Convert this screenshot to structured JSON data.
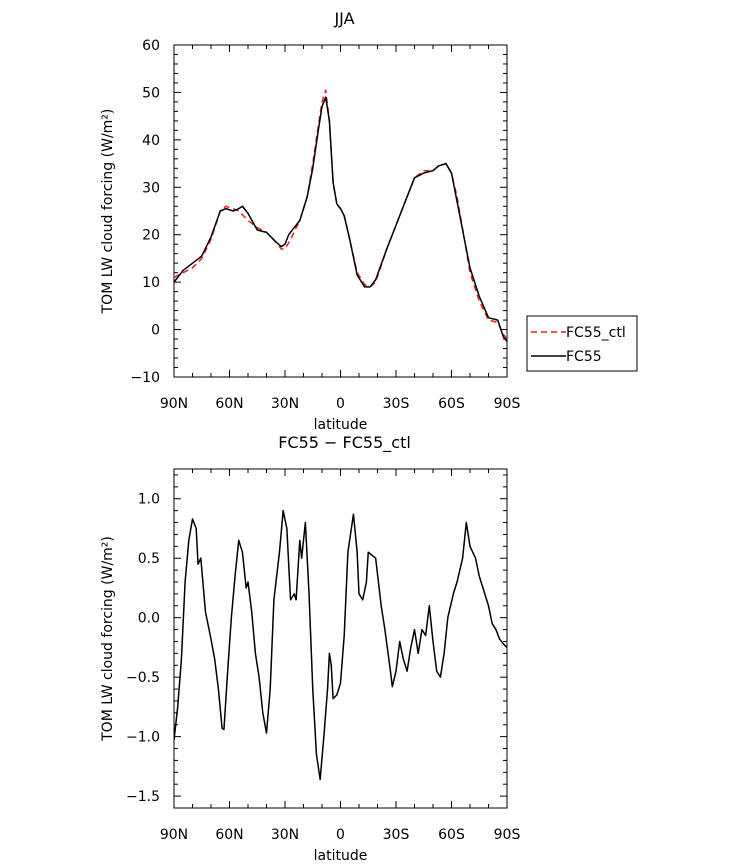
{
  "chart_data": [
    {
      "type": "line",
      "title": "JJA",
      "xlabel": "latitude",
      "ylabel": "TOM LW cloud forcing (W/m²)",
      "xlim": [
        90,
        -90
      ],
      "ylim": [
        -10,
        60
      ],
      "x_ticks": [
        90,
        60,
        30,
        0,
        -30,
        -60,
        -90
      ],
      "x_tick_labels": [
        "90N",
        "60N",
        "30N",
        "0",
        "30S",
        "60S",
        "90S"
      ],
      "y_ticks": [
        -10,
        0,
        10,
        20,
        30,
        40,
        50,
        60
      ],
      "y_tick_labels": [
        "−10",
        "0",
        "10",
        "20",
        "30",
        "40",
        "50",
        "60"
      ],
      "legend_position": "right",
      "series": [
        {
          "name": "FC55_ctl",
          "color": "#e8201c",
          "dash": "dashed",
          "points": [
            [
              90,
              11
            ],
            [
              85,
              12
            ],
            [
              80,
              13
            ],
            [
              75,
              15
            ],
            [
              70,
              19
            ],
            [
              65,
              25
            ],
            [
              62,
              26
            ],
            [
              58,
              25.5
            ],
            [
              55,
              25
            ],
            [
              50,
              23
            ],
            [
              45,
              21.5
            ],
            [
              40,
              20.5
            ],
            [
              35,
              18.5
            ],
            [
              32,
              17
            ],
            [
              30,
              17
            ],
            [
              27,
              19
            ],
            [
              22,
              23
            ],
            [
              18,
              28
            ],
            [
              15,
              35
            ],
            [
              12,
              43
            ],
            [
              10,
              48
            ],
            [
              8,
              50.5
            ],
            [
              6,
              44
            ],
            [
              4,
              31
            ],
            [
              2,
              26.5
            ],
            [
              0,
              25.5
            ],
            [
              -2,
              24
            ],
            [
              -5,
              19
            ],
            [
              -9,
              12
            ],
            [
              -13,
              9.5
            ],
            [
              -16,
              9
            ],
            [
              -19,
              10
            ],
            [
              -25,
              17
            ],
            [
              -30,
              22
            ],
            [
              -35,
              27
            ],
            [
              -40,
              32
            ],
            [
              -45,
              33.5
            ],
            [
              -50,
              33.5
            ],
            [
              -53,
              34.5
            ],
            [
              -57,
              35
            ],
            [
              -60,
              33
            ],
            [
              -63,
              28
            ],
            [
              -67,
              19
            ],
            [
              -70,
              12
            ],
            [
              -75,
              6
            ],
            [
              -80,
              2
            ],
            [
              -85,
              1.5
            ],
            [
              -88,
              -1
            ],
            [
              -90,
              -2
            ]
          ]
        },
        {
          "name": "FC55",
          "color": "#000000",
          "dash": "solid",
          "points": [
            [
              90,
              10
            ],
            [
              85,
              12.5
            ],
            [
              80,
              14
            ],
            [
              75,
              15.5
            ],
            [
              70,
              19.5
            ],
            [
              65,
              25
            ],
            [
              62,
              25.5
            ],
            [
              58,
              25
            ],
            [
              55,
              25.5
            ],
            [
              53,
              26
            ],
            [
              50,
              24.5
            ],
            [
              45,
              21
            ],
            [
              40,
              20.5
            ],
            [
              35,
              18.5
            ],
            [
              32,
              17.5
            ],
            [
              30,
              18
            ],
            [
              28,
              20
            ],
            [
              22,
              23
            ],
            [
              18,
              28
            ],
            [
              15,
              34
            ],
            [
              12,
              42
            ],
            [
              10,
              47
            ],
            [
              8,
              49
            ],
            [
              6,
              44
            ],
            [
              4,
              31
            ],
            [
              2,
              26.5
            ],
            [
              0,
              25.5
            ],
            [
              -2,
              24
            ],
            [
              -5,
              19
            ],
            [
              -9,
              11.5
            ],
            [
              -13,
              9
            ],
            [
              -16,
              9
            ],
            [
              -19,
              10.5
            ],
            [
              -25,
              17
            ],
            [
              -30,
              22
            ],
            [
              -35,
              27
            ],
            [
              -40,
              32
            ],
            [
              -45,
              33
            ],
            [
              -50,
              33.5
            ],
            [
              -53,
              34.5
            ],
            [
              -57,
              35
            ],
            [
              -60,
              33
            ],
            [
              -63,
              27
            ],
            [
              -67,
              19
            ],
            [
              -70,
              13
            ],
            [
              -75,
              7
            ],
            [
              -80,
              2.5
            ],
            [
              -85,
              2
            ],
            [
              -88,
              -1.5
            ],
            [
              -90,
              -2.5
            ]
          ]
        }
      ]
    },
    {
      "type": "line",
      "title": "FC55 − FC55_ctl",
      "xlabel": "latitude",
      "ylabel": "TOM LW cloud forcing (W/m²)",
      "xlim": [
        90,
        -90
      ],
      "ylim": [
        -1.6,
        1.25
      ],
      "x_ticks": [
        90,
        60,
        30,
        0,
        -30,
        -60,
        -90
      ],
      "x_tick_labels": [
        "90N",
        "60N",
        "30N",
        "0",
        "30S",
        "60S",
        "90S"
      ],
      "y_ticks": [
        -1.5,
        -1.0,
        -0.5,
        0.0,
        0.5,
        1.0
      ],
      "y_tick_labels": [
        "−1.5",
        "−1.0",
        "−0.5",
        "0.0",
        "0.5",
        "1.0"
      ],
      "series": [
        {
          "name": "",
          "color": "#000000",
          "dash": "solid",
          "points": [
            [
              90,
              -1.03
            ],
            [
              88,
              -0.75
            ],
            [
              86,
              -0.35
            ],
            [
              84,
              0.3
            ],
            [
              82,
              0.65
            ],
            [
              80,
              0.83
            ],
            [
              78,
              0.75
            ],
            [
              77,
              0.45
            ],
            [
              75.5,
              0.5
            ],
            [
              73,
              0.05
            ],
            [
              70,
              -0.18
            ],
            [
              68,
              -0.35
            ],
            [
              66,
              -0.6
            ],
            [
              64,
              -0.93
            ],
            [
              63,
              -0.94
            ],
            [
              61,
              -0.45
            ],
            [
              59,
              0.0
            ],
            [
              57,
              0.35
            ],
            [
              55,
              0.65
            ],
            [
              53,
              0.55
            ],
            [
              51,
              0.25
            ],
            [
              50,
              0.3
            ],
            [
              48,
              0.05
            ],
            [
              46,
              -0.3
            ],
            [
              44,
              -0.5
            ],
            [
              42,
              -0.8
            ],
            [
              40,
              -0.97
            ],
            [
              38,
              -0.6
            ],
            [
              36,
              0.15
            ],
            [
              33,
              0.55
            ],
            [
              31,
              0.9
            ],
            [
              29,
              0.75
            ],
            [
              27,
              0.15
            ],
            [
              25,
              0.2
            ],
            [
              24,
              0.15
            ],
            [
              22,
              0.65
            ],
            [
              21,
              0.5
            ],
            [
              19,
              0.8
            ],
            [
              17,
              0.2
            ],
            [
              15,
              -0.6
            ],
            [
              13,
              -1.15
            ],
            [
              11,
              -1.36
            ],
            [
              9,
              -1.0
            ],
            [
              7,
              -0.6
            ],
            [
              6,
              -0.3
            ],
            [
              5,
              -0.4
            ],
            [
              4,
              -0.68
            ],
            [
              2,
              -0.65
            ],
            [
              0,
              -0.55
            ],
            [
              -2,
              -0.15
            ],
            [
              -4,
              0.55
            ],
            [
              -7,
              0.87
            ],
            [
              -9,
              0.55
            ],
            [
              -10,
              0.2
            ],
            [
              -12,
              0.15
            ],
            [
              -14,
              0.3
            ],
            [
              -15,
              0.55
            ],
            [
              -19,
              0.5
            ],
            [
              -22,
              0.1
            ],
            [
              -24,
              -0.1
            ],
            [
              -27,
              -0.45
            ],
            [
              -28,
              -0.58
            ],
            [
              -30,
              -0.45
            ],
            [
              -32,
              -0.2
            ],
            [
              -34,
              -0.35
            ],
            [
              -36,
              -0.45
            ],
            [
              -38,
              -0.25
            ],
            [
              -40,
              -0.1
            ],
            [
              -42,
              -0.3
            ],
            [
              -44,
              -0.1
            ],
            [
              -46,
              -0.15
            ],
            [
              -48,
              0.1
            ],
            [
              -50,
              -0.2
            ],
            [
              -52,
              -0.45
            ],
            [
              -54,
              -0.5
            ],
            [
              -56,
              -0.3
            ],
            [
              -58,
              0.0
            ],
            [
              -61,
              0.2
            ],
            [
              -63,
              0.3
            ],
            [
              -66,
              0.5
            ],
            [
              -68,
              0.8
            ],
            [
              -70,
              0.6
            ],
            [
              -73,
              0.5
            ],
            [
              -75,
              0.35
            ],
            [
              -78,
              0.2
            ],
            [
              -80,
              0.1
            ],
            [
              -82,
              -0.05
            ],
            [
              -84,
              -0.1
            ],
            [
              -86,
              -0.18
            ],
            [
              -88,
              -0.22
            ],
            [
              -90,
              -0.25
            ]
          ]
        }
      ]
    }
  ]
}
